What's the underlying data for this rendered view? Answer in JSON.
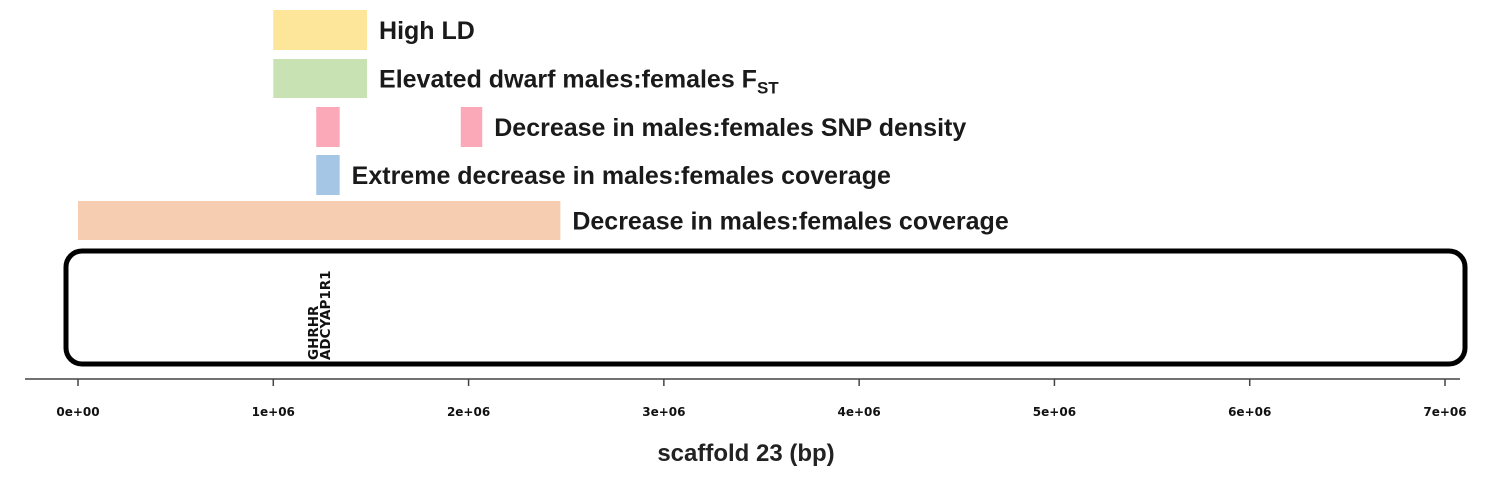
{
  "chart_data": {
    "type": "genomic-track",
    "xlabel": "scaffold 23 (bp)",
    "xlim": [
      0,
      7000000
    ],
    "ticks": [
      {
        "value": 0,
        "label": "0e+00"
      },
      {
        "value": 1000000,
        "label": "1e+06"
      },
      {
        "value": 2000000,
        "label": "2e+06"
      },
      {
        "value": 3000000,
        "label": "3e+06"
      },
      {
        "value": 4000000,
        "label": "4e+06"
      },
      {
        "value": 5000000,
        "label": "5e+06"
      },
      {
        "value": 6000000,
        "label": "6e+06"
      },
      {
        "value": 7000000,
        "label": "7e+06"
      }
    ],
    "scaffold": {
      "start": 0,
      "end": 7000000
    },
    "tracks": [
      {
        "label": "High LD",
        "color": "#fde59a",
        "segments": [
          [
            1000000,
            1480000
          ]
        ]
      },
      {
        "label": "Elevated dwarf males:females F",
        "sub": "ST",
        "color": "#c8e2b4",
        "segments": [
          [
            1000000,
            1480000
          ]
        ]
      },
      {
        "label": "Decrease in males:females SNP density",
        "color": "#fba9b8",
        "segments": [
          [
            1220000,
            1340000
          ],
          [
            1960000,
            2070000
          ]
        ]
      },
      {
        "label": "Extreme decrease in males:females coverage",
        "color": "#a6c6e6",
        "segments": [
          [
            1220000,
            1340000
          ]
        ]
      },
      {
        "label": "Decrease in males:females coverage",
        "color": "#f6cdb1",
        "segments": [
          [
            0,
            2470000
          ]
        ]
      }
    ],
    "genes": [
      {
        "name": "GHRHR",
        "position": 1230000
      },
      {
        "name": "ADCYAP1R1",
        "position": 1290000
      }
    ]
  }
}
